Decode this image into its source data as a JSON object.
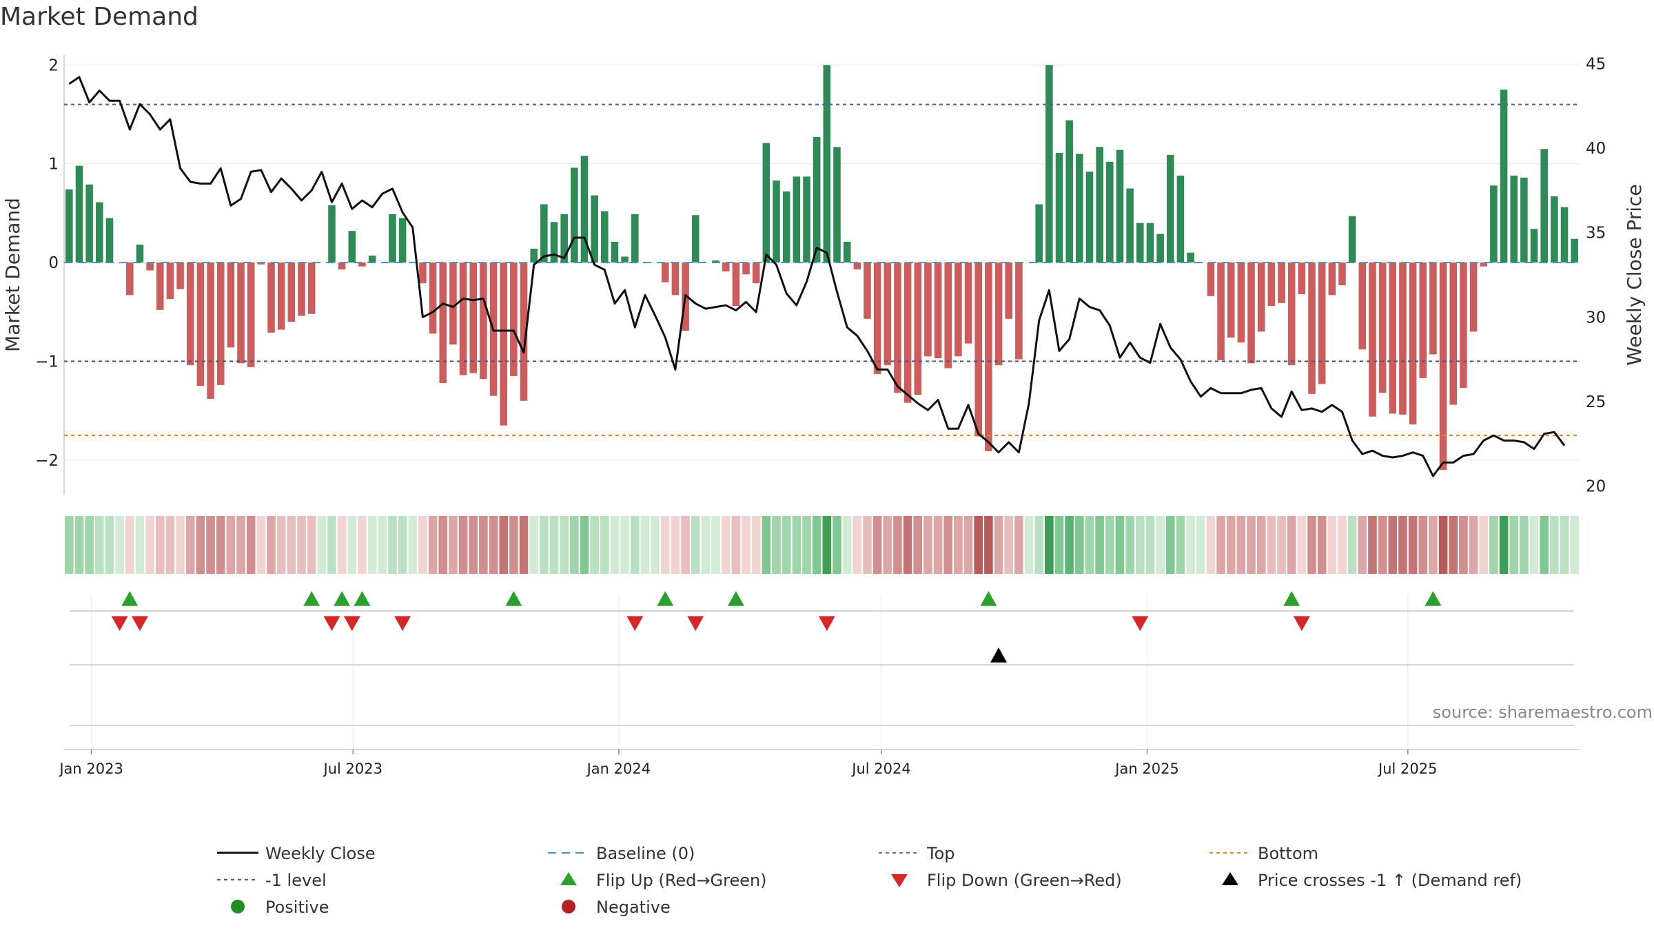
{
  "chart_data": {
    "type": "bar",
    "title": "Market Demand",
    "ylabel_left": "Market Demand",
    "ylabel_right": "Weekly Close Price",
    "ylim_left": [
      -2.35,
      2.1
    ],
    "ylim_right": [
      19.5,
      45.5
    ],
    "yticks_left": [
      {
        "value": 2,
        "label": "2"
      },
      {
        "value": 1,
        "label": "1"
      },
      {
        "value": 0,
        "label": "0"
      },
      {
        "value": -1,
        "label": "−1"
      },
      {
        "value": -2,
        "label": "−2"
      }
    ],
    "yticks_right": [
      {
        "value": 45,
        "label": "45"
      },
      {
        "value": 40,
        "label": "40"
      },
      {
        "value": 35,
        "label": "35"
      },
      {
        "value": 30,
        "label": "30"
      },
      {
        "value": 25,
        "label": "25"
      },
      {
        "value": 20,
        "label": "20"
      }
    ],
    "x_start_week_index": 0,
    "x_ticks": [
      {
        "week": 2.2,
        "label": "Jan 2023"
      },
      {
        "week": 28.1,
        "label": "Jul 2023"
      },
      {
        "week": 54.4,
        "label": "Jan 2024"
      },
      {
        "week": 80.4,
        "label": "Jul 2024"
      },
      {
        "week": 106.7,
        "label": "Jan 2025"
      },
      {
        "week": 132.5,
        "label": "Jul 2025"
      }
    ],
    "demand": [
      0.74,
      0.98,
      0.79,
      0.61,
      0.45,
      0.0,
      -0.33,
      0.18,
      -0.08,
      -0.48,
      -0.37,
      -0.27,
      -1.04,
      -1.25,
      -1.38,
      -1.24,
      -0.86,
      -1.02,
      -1.06,
      -0.02,
      -0.71,
      -0.68,
      -0.6,
      -0.54,
      -0.52,
      0.0,
      0.58,
      -0.07,
      0.32,
      -0.04,
      0.07,
      0.0,
      0.49,
      0.45,
      0.0,
      -0.21,
      -0.72,
      -1.22,
      -0.83,
      -1.14,
      -1.12,
      -1.18,
      -1.35,
      -1.65,
      -1.15,
      -1.4,
      0.14,
      0.59,
      0.41,
      0.49,
      0.96,
      1.08,
      0.68,
      0.52,
      0.21,
      0.06,
      0.49,
      0.0,
      0.0,
      -0.2,
      -0.33,
      -0.69,
      0.48,
      0.0,
      0.02,
      -0.09,
      -0.44,
      -0.12,
      -0.21,
      1.21,
      0.83,
      0.72,
      0.87,
      0.87,
      1.27,
      2.0,
      1.17,
      0.21,
      -0.07,
      -0.57,
      -1.13,
      -1.04,
      -1.32,
      -1.42,
      -1.34,
      -0.95,
      -0.97,
      -1.07,
      -0.95,
      -0.82,
      -1.76,
      -1.91,
      -1.04,
      -0.57,
      -0.98,
      0.0,
      0.59,
      2.0,
      1.11,
      1.44,
      1.1,
      0.92,
      1.17,
      1.02,
      1.14,
      0.75,
      0.4,
      0.4,
      0.29,
      1.09,
      0.88,
      0.1,
      0.0,
      -0.34,
      -0.99,
      -0.76,
      -0.81,
      -1.02,
      -0.7,
      -0.44,
      -0.41,
      -1.04,
      -0.32,
      -1.33,
      -1.23,
      -0.33,
      -0.23,
      0.47,
      -0.88,
      -1.56,
      -1.32,
      -1.53,
      -1.54,
      -1.64,
      -1.17,
      -0.93,
      -2.1,
      -1.44,
      -1.27,
      -0.7,
      -0.04,
      0.78,
      1.75,
      0.88,
      0.86,
      0.34,
      1.15,
      0.67,
      0.56,
      0.24
    ],
    "weekly_close": [
      43.8,
      44.2,
      42.7,
      43.4,
      42.8,
      42.8,
      41.1,
      42.6,
      42.0,
      41.1,
      41.7,
      38.8,
      38.0,
      37.9,
      37.9,
      38.8,
      36.6,
      37.0,
      38.6,
      38.7,
      37.4,
      38.2,
      37.6,
      36.9,
      37.5,
      38.6,
      36.8,
      37.9,
      36.4,
      36.9,
      36.5,
      37.3,
      37.6,
      36.2,
      35.3,
      30.0,
      30.3,
      30.8,
      30.6,
      31.1,
      31.0,
      31.1,
      29.2,
      29.2,
      29.2,
      27.9,
      33.1,
      33.6,
      33.7,
      33.5,
      34.7,
      34.7,
      33.1,
      32.8,
      30.8,
      31.6,
      29.4,
      31.3,
      30.1,
      28.8,
      26.9,
      31.3,
      30.8,
      30.5,
      30.6,
      30.7,
      30.4,
      30.9,
      30.3,
      33.7,
      33.1,
      31.4,
      30.7,
      32.1,
      34.1,
      33.8,
      31.5,
      29.4,
      28.9,
      28.0,
      26.9,
      26.9,
      25.9,
      25.4,
      24.9,
      24.5,
      25.1,
      23.4,
      23.4,
      24.8,
      23.1,
      22.6,
      22.0,
      22.6,
      22.0,
      24.9,
      29.8,
      31.6,
      28.0,
      28.7,
      31.1,
      30.6,
      30.4,
      29.5,
      27.6,
      28.5,
      27.6,
      27.3,
      29.6,
      28.2,
      27.5,
      26.2,
      25.3,
      25.8,
      25.5,
      25.5,
      25.5,
      25.7,
      25.8,
      24.6,
      24.1,
      25.6,
      24.5,
      24.6,
      24.4,
      24.8,
      24.4,
      22.7,
      21.9,
      22.1,
      21.8,
      21.7,
      21.8,
      22.0,
      21.8,
      20.6,
      21.4,
      21.4,
      21.8,
      21.9,
      22.7,
      23.0,
      22.7,
      22.7,
      22.6,
      22.2,
      23.1,
      23.2,
      22.4
    ],
    "strip_colors_green": [
      "#d2ebd5",
      "#b9e0c0",
      "#9fd5aa",
      "#7fc891",
      "#5ab572",
      "#3e9e56"
    ],
    "strip_colors_red": [
      "#f2d3d3",
      "#e8bdbd",
      "#dca6a6",
      "#d08e8e",
      "#c37575",
      "#b65c5c"
    ],
    "flip_up_weeks": [
      6,
      24,
      27,
      29,
      44,
      59,
      66,
      91,
      121,
      135
    ],
    "flip_down_weeks": [
      5,
      7,
      26,
      28,
      33,
      56,
      62,
      75,
      106,
      122
    ],
    "price_cross_weeks": [
      92
    ],
    "reference_lines": [
      {
        "name": "Top",
        "value": 1.6,
        "color": "#5a5aa0"
      },
      {
        "name": "-1 level",
        "value": -1.0,
        "color": "#555577"
      },
      {
        "name": "Bottom",
        "value": -1.75,
        "color": "#e08a1e"
      }
    ],
    "colors": {
      "positive_bar": "#2e8b57",
      "negative_bar": "#cd5c5c",
      "close_line": "#111111",
      "baseline": "#4a90c0",
      "top_line": "#6a6ab0",
      "level_line": "#555577",
      "bottom_line": "#e08a1e",
      "flip_up": "#2ca02c",
      "flip_down": "#d62728",
      "price_cross": "#000000",
      "positive_dot": "#228b22",
      "negative_dot": "#b22222",
      "grid": "#e8e8e8"
    },
    "legend": [
      {
        "label": "Weekly Close",
        "kind": "solid-line",
        "color": "#111111"
      },
      {
        "label": "Baseline (0)",
        "kind": "dashed-line",
        "color": "#4a90c0"
      },
      {
        "label": "Top",
        "kind": "dotted-line",
        "color": "#6a6ab0"
      },
      {
        "label": "Bottom",
        "kind": "dotted-line",
        "color": "#e08a1e"
      },
      {
        "label": "-1 level",
        "kind": "dotted-line",
        "color": "#555577"
      },
      {
        "label": "Flip Up (Red→Green)",
        "kind": "triangle-up",
        "color": "#2ca02c"
      },
      {
        "label": "Flip Down (Green→Red)",
        "kind": "triangle-down",
        "color": "#d62728"
      },
      {
        "label": "Price crosses -1 ↑ (Demand ref)",
        "kind": "triangle-up",
        "color": "#000000"
      },
      {
        "label": "Positive",
        "kind": "dot",
        "color": "#228b22"
      },
      {
        "label": "Negative",
        "kind": "dot",
        "color": "#b22222"
      }
    ],
    "source": "source: sharemaestro.com"
  }
}
